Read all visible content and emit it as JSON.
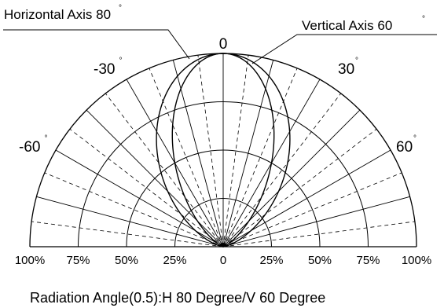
{
  "chart_data": {
    "type": "polar",
    "title": "",
    "caption": "Radiation Angle(0.5):H 80 Degree/V 60 Degree",
    "angle_labels": [
      {
        "angle": 0,
        "text": "0",
        "degree_mark": false
      },
      {
        "angle": -30,
        "text": "-30",
        "degree_mark": true
      },
      {
        "angle": 30,
        "text": "30",
        "degree_mark": true
      },
      {
        "angle": -60,
        "text": "-60",
        "degree_mark": true
      },
      {
        "angle": 60,
        "text": "60",
        "degree_mark": true
      }
    ],
    "degree_mark": "°",
    "radial_tick_labels": [
      "100%",
      "75%",
      "50%",
      "25%",
      "0",
      "25%",
      "50%",
      "75%",
      "100%"
    ],
    "radial_levels": [
      0.25,
      0.5,
      0.75,
      1.0
    ],
    "angle_range": [
      -90,
      90
    ],
    "series": [
      {
        "name": "Horizontal Axis 80",
        "half_angle": 40,
        "degree_mark": true
      },
      {
        "name": "Vertical Axis 60",
        "half_angle": 30,
        "degree_mark": true
      }
    ]
  }
}
